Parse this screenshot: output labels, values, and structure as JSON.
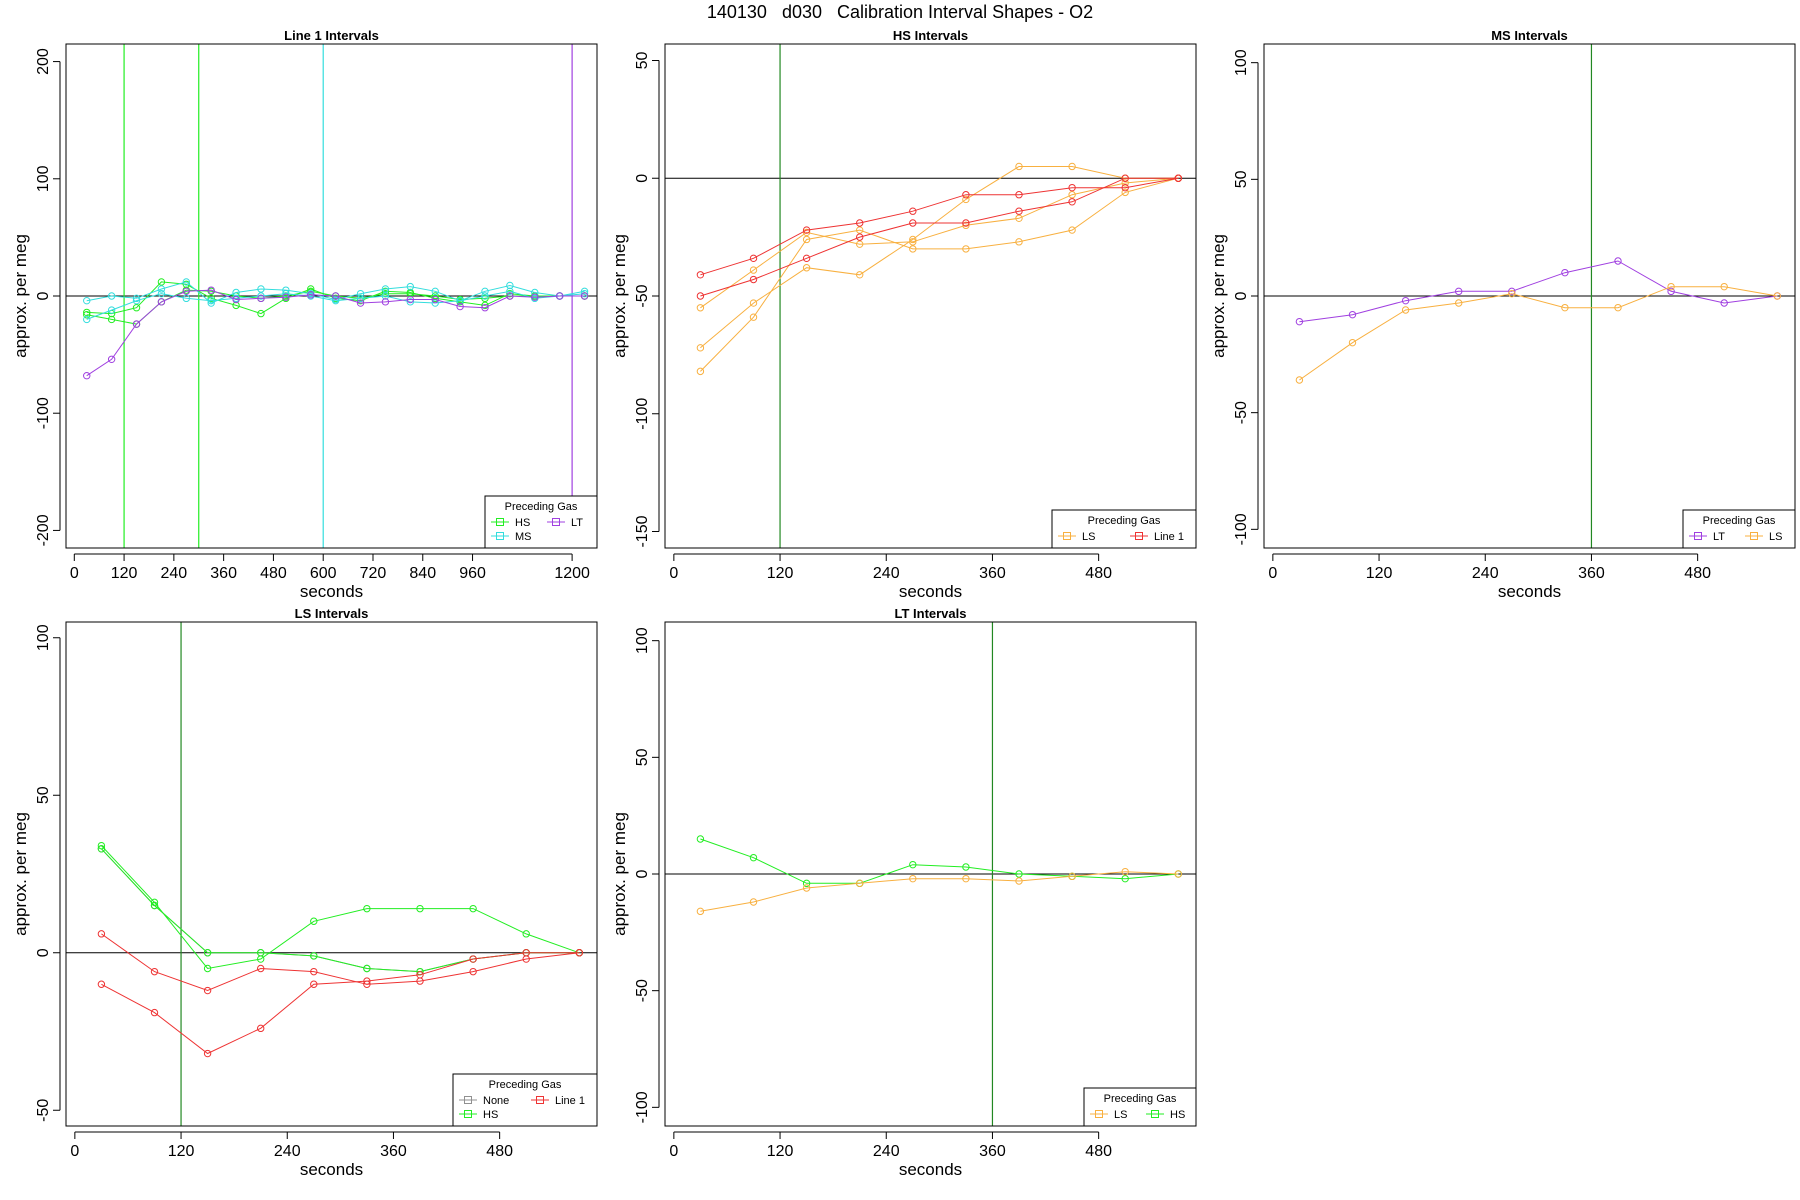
{
  "figure": {
    "title": "140130   d030   Calibration Interval Shapes - O2"
  },
  "colors": {
    "None": "#909090",
    "HS": "#22ee22",
    "MS": "#33dddd",
    "LT": "#a040e0",
    "LS": "#f8b040",
    "Line 1": "#ee3333"
  },
  "chart_data": [
    {
      "type": "line",
      "title": "Line 1 Intervals",
      "xlabel": "seconds",
      "ylabel": "approx. per meg",
      "xlim": [
        -20,
        1260
      ],
      "ylim": [
        -215,
        215
      ],
      "xticks": [
        0,
        120,
        240,
        360,
        480,
        600,
        720,
        840,
        960,
        1200
      ],
      "yticks": [
        -200,
        -100,
        0,
        100,
        200
      ],
      "hline": 0,
      "grid": false,
      "legend": {
        "title": "Preceding Gas",
        "position": "bottom-right",
        "entries": [
          "HS",
          "LT",
          "MS"
        ]
      },
      "vlines": [
        {
          "x": 120,
          "color": "HS"
        },
        {
          "x": 300,
          "color": "HS"
        },
        {
          "x": 600,
          "color": "MS"
        },
        {
          "x": 1200,
          "color": "LT"
        }
      ],
      "series": [
        {
          "color": "HS",
          "x": [
            30,
            90,
            150,
            210,
            270,
            330,
            390,
            450,
            510,
            570,
            630,
            690,
            750,
            810,
            870,
            930,
            990,
            1050,
            1110,
            1170,
            1230
          ],
          "y": [
            -14,
            -15,
            -10,
            12,
            10,
            -2,
            -8,
            -15,
            -2,
            6,
            -2,
            -4,
            4,
            3,
            -2,
            -5,
            -8,
            2,
            0,
            0,
            0
          ]
        },
        {
          "color": "HS",
          "x": [
            30,
            90,
            150,
            210,
            270,
            330,
            390,
            450,
            510,
            570,
            630,
            690,
            750,
            810,
            870,
            930,
            990,
            1050,
            1110,
            1170,
            1230
          ],
          "y": [
            -16,
            -20,
            -24,
            -5,
            5,
            4,
            0,
            -2,
            0,
            4,
            0,
            -2,
            2,
            2,
            0,
            -3,
            -2,
            0,
            0,
            0,
            0
          ]
        },
        {
          "color": "MS",
          "x": [
            30,
            90,
            150,
            210,
            270,
            330,
            390,
            450,
            510,
            570,
            630,
            690,
            750,
            810,
            870,
            930,
            990,
            1050,
            1110,
            1170,
            1230
          ],
          "y": [
            -4,
            0,
            -2,
            6,
            12,
            -6,
            3,
            6,
            5,
            2,
            -3,
            2,
            6,
            8,
            4,
            -4,
            4,
            9,
            3,
            0,
            4
          ]
        },
        {
          "color": "MS",
          "x": [
            30,
            90,
            150,
            210,
            270,
            330,
            390,
            450,
            510,
            570,
            630,
            690,
            750,
            810,
            870,
            930,
            990,
            1050,
            1110,
            1170,
            1230
          ],
          "y": [
            -20,
            -12,
            -4,
            2,
            -2,
            -4,
            -2,
            0,
            2,
            0,
            -4,
            -2,
            0,
            -5,
            -6,
            -4,
            0,
            4,
            -2,
            0,
            2
          ]
        },
        {
          "color": "LT",
          "x": [
            30,
            90,
            150,
            210,
            270,
            330,
            390,
            450,
            510,
            570,
            630,
            690,
            750,
            810,
            870,
            930,
            990,
            1050,
            1110,
            1170,
            1230
          ],
          "y": [
            -68,
            -54,
            -24,
            -5,
            4,
            5,
            -3,
            -2,
            -1,
            1,
            0,
            -6,
            -5,
            -3,
            -3,
            -9,
            -10,
            0,
            -1,
            0,
            0
          ]
        }
      ]
    },
    {
      "type": "line",
      "title": "HS Intervals",
      "xlabel": "seconds",
      "ylabel": "approx. per meg",
      "xlim": [
        -10,
        590
      ],
      "ylim": [
        -157,
        57
      ],
      "xticks": [
        0,
        120,
        240,
        360,
        480
      ],
      "yticks": [
        -150,
        -100,
        -50,
        0,
        50
      ],
      "hline": 0,
      "grid": false,
      "legend": {
        "title": "Preceding Gas",
        "position": "bottom-right",
        "entries": [
          "LS",
          "Line 1"
        ]
      },
      "vlines": [
        {
          "x": 120,
          "color": "#228822"
        }
      ],
      "series": [
        {
          "color": "LS",
          "x": [
            30,
            90,
            150,
            210,
            270,
            330,
            390,
            450,
            510,
            570
          ],
          "y": [
            -82,
            -59,
            -26,
            -22,
            -30,
            -30,
            -27,
            -22,
            -6,
            0
          ]
        },
        {
          "color": "LS",
          "x": [
            30,
            90,
            150,
            210,
            270,
            330,
            390,
            450,
            510,
            570
          ],
          "y": [
            -72,
            -53,
            -38,
            -41,
            -26,
            -9,
            5,
            5,
            0,
            0
          ]
        },
        {
          "color": "LS",
          "x": [
            30,
            90,
            150,
            210,
            270,
            330,
            390,
            450,
            510,
            570
          ],
          "y": [
            -55,
            -39,
            -23,
            -28,
            -27,
            -20,
            -17,
            -7,
            -2,
            0
          ]
        },
        {
          "color": "Line 1",
          "x": [
            30,
            90,
            150,
            210,
            270,
            330,
            390,
            450,
            510,
            570
          ],
          "y": [
            -41,
            -34,
            -22,
            -19,
            -14,
            -7,
            -7,
            -4,
            -4,
            0
          ]
        },
        {
          "color": "Line 1",
          "x": [
            30,
            90,
            150,
            210,
            270,
            330,
            390,
            450,
            510,
            570
          ],
          "y": [
            -50,
            -43,
            -34,
            -25,
            -19,
            -19,
            -14,
            -10,
            0,
            0
          ]
        }
      ]
    },
    {
      "type": "line",
      "title": "MS Intervals",
      "xlabel": "seconds",
      "ylabel": "approx. per meg",
      "xlim": [
        -10,
        590
      ],
      "ylim": [
        -108,
        108
      ],
      "xticks": [
        0,
        120,
        240,
        360,
        480
      ],
      "yticks": [
        -100,
        -50,
        0,
        50,
        100
      ],
      "hline": 0,
      "grid": false,
      "legend": {
        "title": "Preceding Gas",
        "position": "bottom-right",
        "entries": [
          "LT",
          "LS"
        ]
      },
      "vlines": [
        {
          "x": 360,
          "color": "#228822"
        }
      ],
      "series": [
        {
          "color": "LT",
          "x": [
            30,
            90,
            150,
            210,
            270,
            330,
            390,
            450,
            510,
            570
          ],
          "y": [
            -11,
            -8,
            -2,
            2,
            2,
            10,
            15,
            2,
            -3,
            0
          ]
        },
        {
          "color": "LS",
          "x": [
            30,
            90,
            150,
            210,
            270,
            330,
            390,
            450,
            510,
            570
          ],
          "y": [
            -36,
            -20,
            -6,
            -3,
            1,
            -5,
            -5,
            4,
            4,
            0
          ]
        }
      ]
    },
    {
      "type": "line",
      "title": "LS Intervals",
      "xlabel": "seconds",
      "ylabel": "approx. per meg",
      "xlim": [
        -10,
        590
      ],
      "ylim": [
        -55,
        105
      ],
      "xticks": [
        0,
        120,
        240,
        360,
        480
      ],
      "yticks": [
        -50,
        0,
        50,
        100
      ],
      "hline": 0,
      "grid": false,
      "legend": {
        "title": "Preceding Gas",
        "position": "bottom-right",
        "entries": [
          "None",
          "Line 1",
          "HS"
        ]
      },
      "vlines": [
        {
          "x": 120,
          "color": "#228822"
        }
      ],
      "series": [
        {
          "color": "None",
          "x": [
            30,
            90,
            150,
            210,
            270,
            330,
            390,
            450,
            510,
            570
          ],
          "y": [
            33,
            15,
            0,
            0,
            -1,
            -5,
            -6,
            -2,
            0,
            0
          ]
        },
        {
          "color": "HS",
          "x": [
            30,
            90,
            150,
            210,
            270,
            330,
            390,
            450,
            510,
            570
          ],
          "y": [
            34,
            16,
            -5,
            -2,
            10,
            14,
            14,
            14,
            6,
            0
          ]
        },
        {
          "color": "HS",
          "x": [
            30,
            90,
            150,
            210,
            270,
            330,
            390,
            450,
            510,
            570
          ],
          "y": [
            33,
            15,
            0,
            0,
            -1,
            -5,
            -6,
            -2,
            0,
            0
          ]
        },
        {
          "color": "Line 1",
          "x": [
            30,
            90,
            150,
            210,
            270,
            330,
            390,
            450,
            510,
            570
          ],
          "y": [
            6,
            -6,
            -12,
            -5,
            -6,
            -10,
            -9,
            -6,
            -2,
            0
          ]
        },
        {
          "color": "Line 1",
          "x": [
            30,
            90,
            150,
            210,
            270,
            330,
            390,
            450,
            510,
            570
          ],
          "y": [
            -10,
            -19,
            -32,
            -24,
            -10,
            -9,
            -7,
            -2,
            0,
            0
          ]
        }
      ]
    },
    {
      "type": "line",
      "title": "LT Intervals",
      "xlabel": "seconds",
      "ylabel": "approx. per meg",
      "xlim": [
        -10,
        590
      ],
      "ylim": [
        -108,
        108
      ],
      "xticks": [
        0,
        120,
        240,
        360,
        480
      ],
      "yticks": [
        -100,
        -50,
        0,
        50,
        100
      ],
      "hline": 0,
      "grid": false,
      "legend": {
        "title": "Preceding Gas",
        "position": "bottom-right",
        "entries": [
          "LS",
          "HS"
        ]
      },
      "vlines": [
        {
          "x": 360,
          "color": "#228822"
        }
      ],
      "series": [
        {
          "color": "HS",
          "x": [
            30,
            90,
            150,
            210,
            270,
            330,
            390,
            450,
            510,
            570
          ],
          "y": [
            15,
            7,
            -4,
            -4,
            4,
            3,
            0,
            -1,
            -2,
            0
          ]
        },
        {
          "color": "LS",
          "x": [
            30,
            90,
            150,
            210,
            270,
            330,
            390,
            450,
            510,
            570
          ],
          "y": [
            -16,
            -12,
            -6,
            -4,
            -2,
            -2,
            -3,
            -1,
            1,
            0
          ]
        }
      ]
    }
  ]
}
